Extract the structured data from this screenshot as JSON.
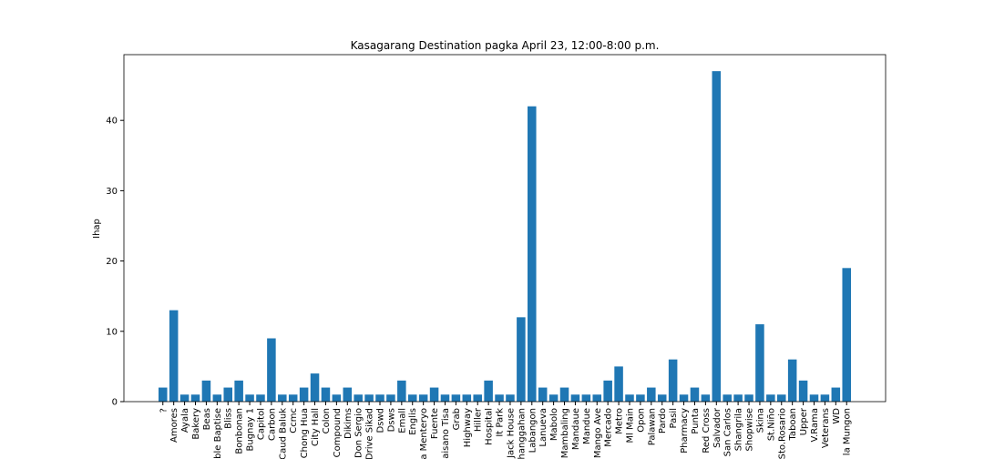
{
  "chart_data": {
    "type": "bar",
    "title": "Kasagarang Destination pagka April 23, 12:00-8:00 p.m.",
    "y_label": "Ihap",
    "categories": [
      "?",
      "Amores",
      "Ayala",
      "Bakery",
      "Beas",
      "ble Baptise",
      "Bliss",
      "Bonbonan",
      "Bugnay 1",
      "Capitol",
      "Carbon",
      "Caud Baluk",
      "Ccmc",
      "Chong Hua",
      "City Hall",
      "Colon",
      "Compound",
      "Dikims",
      "Don Sergio",
      "Drive Sikad",
      "Dswd",
      "Dsws",
      "Emall",
      "Englis",
      "a Menteryo",
      "Fuente",
      "aisano Tisa",
      "Grab",
      "Highway",
      "Hiller",
      "Hospital",
      "It Park",
      "Jack House",
      "hanggahan",
      "Labangon",
      "Lanueva",
      "Mabolo",
      "Mambaling",
      "Mandaue",
      "Mandue",
      "Mango Ave",
      "Mercado",
      "Metro",
      "Ml Main",
      "Opon",
      "Palawan",
      "Pardo",
      "Pasil",
      "Pharmacy",
      "Punta",
      "Red Cross",
      "Salvador",
      "San Carlos",
      "Shangrila",
      "Shopwise",
      "Skina",
      "St.Niño",
      "Sto.Rosario",
      "Taboan",
      "Upper",
      "V.Rama",
      "Veterans",
      "WD",
      "la Mungon"
    ],
    "values": [
      2,
      13,
      1,
      1,
      3,
      1,
      2,
      3,
      1,
      1,
      9,
      1,
      1,
      2,
      4,
      2,
      1,
      2,
      1,
      1,
      1,
      1,
      3,
      1,
      1,
      2,
      1,
      1,
      1,
      1,
      3,
      1,
      1,
      12,
      42,
      2,
      1,
      2,
      1,
      1,
      1,
      3,
      5,
      1,
      1,
      2,
      1,
      6,
      1,
      2,
      1,
      47,
      1,
      1,
      1,
      11,
      1,
      1,
      6,
      3,
      1,
      1,
      2,
      19
    ],
    "color": "#1f77b4",
    "ylim": [
      0,
      49.35
    ],
    "yticks": [
      0,
      10,
      20,
      30,
      40
    ],
    "grid": false
  }
}
